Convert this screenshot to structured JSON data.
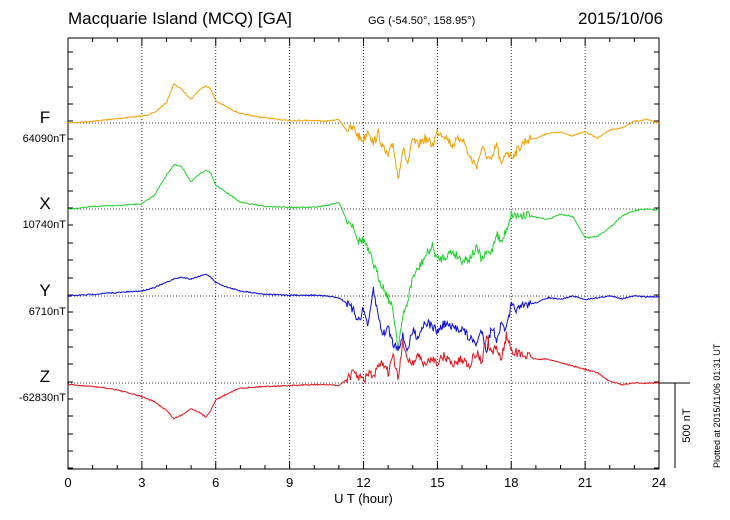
{
  "header": {
    "station": "Macquarie Island (MCQ)  [GA]",
    "coords": "GG (-54.50°, 158.95°)",
    "date": "2015/10/06"
  },
  "footer": {
    "plotted": "Plotted at 2015/11/06 01:31  UT"
  },
  "chart_data": {
    "type": "line",
    "xlabel": "U T (hour)",
    "xlim": [
      0,
      24
    ],
    "xticks": [
      "0",
      "3",
      "6",
      "9",
      "12",
      "15",
      "18",
      "21",
      "24"
    ],
    "scale_bar": {
      "label": "500 nT",
      "value": 500
    },
    "grid": true,
    "series": [
      {
        "name": "F",
        "baseline": "64090nT",
        "color": "#f5a000",
        "x": [
          0,
          1,
          2,
          2.5,
          3,
          3.5,
          4,
          4.3,
          4.6,
          5,
          5.3,
          5.6,
          5.8,
          6,
          6.5,
          7,
          8,
          9,
          10,
          10.5,
          11,
          11.3,
          11.6,
          11.8,
          12,
          12.2,
          12.4,
          12.6,
          12.8,
          13,
          13.2,
          13.4,
          13.6,
          13.8,
          14,
          14.2,
          14.5,
          14.8,
          15,
          15.3,
          15.6,
          16,
          16.3,
          16.6,
          16.8,
          17,
          17.2,
          17.4,
          17.6,
          17.8,
          18,
          18.3,
          18.6,
          19,
          19.5,
          20,
          20.5,
          21,
          21.5,
          22,
          22.5,
          23,
          23.5,
          24
        ],
        "values": [
          0,
          10,
          25,
          35,
          40,
          60,
          120,
          230,
          200,
          140,
          190,
          220,
          200,
          130,
          90,
          55,
          30,
          15,
          15,
          10,
          20,
          -40,
          -30,
          -80,
          -100,
          -40,
          -120,
          -60,
          -150,
          -200,
          -120,
          -320,
          -150,
          -240,
          -100,
          -130,
          -90,
          -130,
          -50,
          -70,
          -130,
          -80,
          -200,
          -250,
          -150,
          -190,
          -230,
          -120,
          -260,
          -160,
          -200,
          -150,
          -100,
          -90,
          -60,
          -55,
          -75,
          -50,
          -90,
          -40,
          -30,
          10,
          20,
          0
        ]
      },
      {
        "name": "X",
        "baseline": "10740nT",
        "color": "#22d12c",
        "x": [
          0,
          1,
          2,
          2.5,
          3,
          3.5,
          4,
          4.3,
          4.6,
          5,
          5.3,
          5.6,
          5.8,
          6,
          6.5,
          7,
          8,
          9,
          10,
          10.5,
          11,
          11.3,
          11.6,
          11.8,
          12,
          12.2,
          12.4,
          12.6,
          12.8,
          13,
          13.2,
          13.4,
          13.6,
          13.8,
          14,
          14.2,
          14.5,
          14.8,
          15,
          15.3,
          15.6,
          16,
          16.3,
          16.6,
          16.8,
          17,
          17.2,
          17.4,
          17.6,
          17.8,
          18,
          18.3,
          18.6,
          19,
          19.5,
          20,
          20.5,
          21,
          21.5,
          22,
          22.5,
          23,
          23.5,
          24
        ],
        "values": [
          0,
          15,
          20,
          25,
          30,
          80,
          200,
          260,
          250,
          160,
          200,
          230,
          210,
          140,
          90,
          40,
          15,
          10,
          10,
          20,
          40,
          -60,
          -100,
          -190,
          -180,
          -250,
          -320,
          -400,
          -460,
          -520,
          -600,
          -800,
          -640,
          -540,
          -400,
          -360,
          -280,
          -220,
          -300,
          -280,
          -250,
          -300,
          -290,
          -230,
          -300,
          -260,
          -250,
          -140,
          -200,
          -120,
          -30,
          -40,
          -30,
          -50,
          -60,
          -30,
          -45,
          -170,
          -160,
          -110,
          -40,
          -10,
          0,
          -10
        ]
      },
      {
        "name": "Y",
        "baseline": "6710nT",
        "color": "#0b0bdd",
        "x": [
          0,
          1,
          2,
          2.5,
          3,
          3.5,
          4,
          4.3,
          4.6,
          5,
          5.3,
          5.6,
          5.8,
          6,
          6.5,
          7,
          8,
          9,
          10,
          10.5,
          11,
          11.3,
          11.6,
          11.8,
          12,
          12.2,
          12.4,
          12.6,
          12.8,
          13,
          13.2,
          13.4,
          13.6,
          13.8,
          14,
          14.2,
          14.5,
          14.8,
          15,
          15.3,
          15.6,
          16,
          16.3,
          16.6,
          16.8,
          17,
          17.2,
          17.4,
          17.6,
          17.8,
          18,
          18.3,
          18.6,
          19,
          19.5,
          20,
          20.5,
          21,
          21.5,
          22,
          22.5,
          23,
          23.5,
          24
        ],
        "values": [
          0,
          10,
          20,
          25,
          30,
          50,
          80,
          100,
          110,
          100,
          115,
          130,
          110,
          80,
          50,
          30,
          10,
          5,
          5,
          0,
          -10,
          -40,
          -90,
          -140,
          -80,
          -180,
          40,
          -120,
          -230,
          -180,
          -280,
          -300,
          -240,
          -320,
          -200,
          -240,
          -150,
          -180,
          -210,
          -160,
          -190,
          -190,
          -250,
          -280,
          -200,
          -320,
          -180,
          -250,
          -170,
          -200,
          -60,
          -80,
          -50,
          -40,
          -10,
          -20,
          0,
          -20,
          -10,
          0,
          -15,
          0,
          -5,
          -5
        ]
      },
      {
        "name": "Z",
        "baseline": "-62830nT",
        "color": "#e8141c",
        "x": [
          0,
          1,
          2,
          2.5,
          3,
          3.5,
          4,
          4.3,
          4.6,
          5,
          5.3,
          5.6,
          5.8,
          6,
          6.5,
          7,
          8,
          9,
          10,
          10.5,
          11,
          11.3,
          11.6,
          11.8,
          12,
          12.2,
          12.4,
          12.6,
          12.8,
          13,
          13.2,
          13.4,
          13.6,
          13.8,
          14,
          14.2,
          14.5,
          14.8,
          15,
          15.3,
          15.6,
          16,
          16.3,
          16.6,
          16.8,
          17,
          17.2,
          17.4,
          17.6,
          17.8,
          18,
          18.3,
          18.6,
          19,
          19.5,
          20,
          20.5,
          21,
          21.5,
          22,
          22.5,
          23,
          23.5,
          24
        ],
        "values": [
          -10,
          -20,
          -40,
          -60,
          -80,
          -110,
          -160,
          -210,
          -190,
          -150,
          -170,
          -200,
          -160,
          -100,
          -60,
          -30,
          -20,
          -15,
          -10,
          -10,
          -15,
          20,
          60,
          40,
          10,
          60,
          30,
          90,
          120,
          60,
          160,
          20,
          230,
          150,
          110,
          170,
          100,
          150,
          120,
          160,
          110,
          140,
          110,
          180,
          120,
          280,
          160,
          210,
          140,
          280,
          200,
          170,
          160,
          140,
          140,
          120,
          100,
          80,
          60,
          10,
          -10,
          0,
          0,
          0
        ]
      }
    ]
  }
}
